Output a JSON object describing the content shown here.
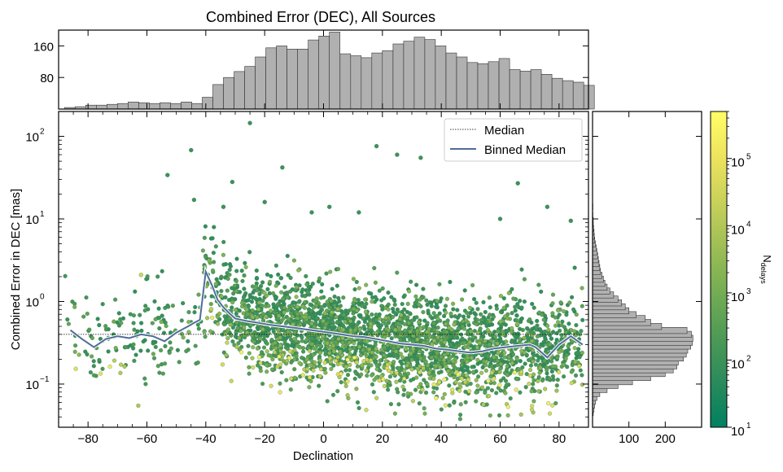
{
  "chart_data": {
    "type": "scatter",
    "title": "Combined Error (DEC), All Sources",
    "xlabel": "Declination",
    "ylabel": "Combined Error in DEC [mas]",
    "xlim": [
      -90,
      90
    ],
    "ylim": [
      0.03,
      200
    ],
    "yscale": "log",
    "x_ticks": [
      -80,
      -60,
      -40,
      -20,
      0,
      20,
      40,
      60,
      80
    ],
    "x_tick_labels": [
      "−80",
      "−60",
      "−40",
      "−20",
      "0",
      "20",
      "40",
      "60",
      "80"
    ],
    "y_ticks": [
      0.1,
      1,
      10,
      100
    ],
    "y_tick_labels": [
      "10",
      "10",
      "10",
      "10"
    ],
    "y_tick_exponents": [
      "−1",
      "0",
      "1",
      "2"
    ],
    "legend": {
      "placement": "top-right",
      "entries": [
        {
          "label": "Median",
          "style": "dotted",
          "color": "#000000"
        },
        {
          "label": "Binned Median",
          "style": "solid",
          "color": "#4f6d99"
        }
      ]
    },
    "median_value": 0.4,
    "binned_median": {
      "x": [
        -86,
        -82,
        -78,
        -74,
        -70,
        -66,
        -62,
        -58,
        -54,
        -50,
        -46,
        -44,
        -42,
        -40,
        -38,
        -36,
        -34,
        -32,
        -30,
        -26,
        -22,
        -18,
        -14,
        -10,
        -6,
        -2,
        2,
        6,
        10,
        14,
        18,
        22,
        26,
        30,
        34,
        38,
        42,
        46,
        50,
        54,
        58,
        62,
        66,
        70,
        72,
        76,
        80,
        84,
        88
      ],
      "y": [
        0.45,
        0.35,
        0.28,
        0.35,
        0.38,
        0.36,
        0.4,
        0.38,
        0.33,
        0.42,
        0.5,
        0.55,
        0.6,
        2.3,
        1.6,
        1.05,
        0.85,
        0.72,
        0.62,
        0.58,
        0.55,
        0.52,
        0.5,
        0.48,
        0.46,
        0.44,
        0.42,
        0.4,
        0.38,
        0.37,
        0.35,
        0.33,
        0.31,
        0.3,
        0.29,
        0.27,
        0.26,
        0.25,
        0.24,
        0.25,
        0.27,
        0.28,
        0.29,
        0.3,
        0.28,
        0.21,
        0.3,
        0.38,
        0.3
      ]
    },
    "colorbar": {
      "label": "N",
      "label_sub": "delays",
      "scale": "log",
      "range": [
        10,
        500000
      ],
      "ticks": [
        10,
        100,
        1000,
        10000,
        100000
      ],
      "tick_labels": [
        "10",
        "10",
        "10",
        "10",
        "10"
      ],
      "tick_exponents": [
        "1",
        "2",
        "3",
        "4",
        "5"
      ],
      "colormap": [
        "#008060",
        "#2a8b5b",
        "#4e9a56",
        "#74ad54",
        "#9ebe55",
        "#c8d15a",
        "#eee35e",
        "#ffff66"
      ]
    },
    "top_histogram": {
      "y_ticks": [
        80,
        160
      ],
      "y_tick_labels": [
        "80",
        "160"
      ],
      "ylim": [
        0,
        200
      ],
      "bin_edges_start": -88,
      "bin_width": 3.6,
      "counts": [
        4,
        6,
        10,
        10,
        12,
        14,
        18,
        16,
        14,
        16,
        14,
        18,
        14,
        30,
        62,
        80,
        95,
        108,
        132,
        155,
        160,
        152,
        152,
        175,
        185,
        195,
        140,
        135,
        130,
        142,
        148,
        165,
        172,
        182,
        176,
        160,
        142,
        132,
        118,
        115,
        120,
        128,
        100,
        96,
        100,
        88,
        78,
        72,
        68,
        60
      ]
    },
    "right_histogram": {
      "x_ticks": [
        100,
        200
      ],
      "x_tick_labels": [
        "100",
        "200"
      ],
      "xlim": [
        0,
        300
      ],
      "counts_by_bin": [
        {
          "y": 0.045,
          "c": 2
        },
        {
          "y": 0.05,
          "c": 4
        },
        {
          "y": 0.056,
          "c": 6
        },
        {
          "y": 0.062,
          "c": 8
        },
        {
          "y": 0.069,
          "c": 12
        },
        {
          "y": 0.077,
          "c": 20
        },
        {
          "y": 0.086,
          "c": 40
        },
        {
          "y": 0.096,
          "c": 70
        },
        {
          "y": 0.107,
          "c": 110
        },
        {
          "y": 0.12,
          "c": 160
        },
        {
          "y": 0.134,
          "c": 200
        },
        {
          "y": 0.149,
          "c": 222
        },
        {
          "y": 0.166,
          "c": 232
        },
        {
          "y": 0.185,
          "c": 236
        },
        {
          "y": 0.207,
          "c": 250
        },
        {
          "y": 0.231,
          "c": 258
        },
        {
          "y": 0.258,
          "c": 262
        },
        {
          "y": 0.288,
          "c": 270
        },
        {
          "y": 0.321,
          "c": 275
        },
        {
          "y": 0.358,
          "c": 276
        },
        {
          "y": 0.4,
          "c": 272
        },
        {
          "y": 0.446,
          "c": 260
        },
        {
          "y": 0.498,
          "c": 190
        },
        {
          "y": 0.556,
          "c": 160
        },
        {
          "y": 0.62,
          "c": 145
        },
        {
          "y": 0.692,
          "c": 120
        },
        {
          "y": 0.772,
          "c": 100
        },
        {
          "y": 0.862,
          "c": 90
        },
        {
          "y": 0.962,
          "c": 80
        },
        {
          "y": 1.07,
          "c": 70
        },
        {
          "y": 1.2,
          "c": 58
        },
        {
          "y": 1.34,
          "c": 48
        },
        {
          "y": 1.49,
          "c": 40
        },
        {
          "y": 1.66,
          "c": 34
        },
        {
          "y": 1.86,
          "c": 30
        },
        {
          "y": 2.07,
          "c": 26
        },
        {
          "y": 2.31,
          "c": 22
        },
        {
          "y": 2.58,
          "c": 20
        },
        {
          "y": 2.88,
          "c": 18
        },
        {
          "y": 3.21,
          "c": 16
        },
        {
          "y": 3.58,
          "c": 14
        },
        {
          "y": 4.0,
          "c": 12
        },
        {
          "y": 4.46,
          "c": 10
        },
        {
          "y": 4.98,
          "c": 8
        },
        {
          "y": 5.56,
          "c": 6
        },
        {
          "y": 6.2,
          "c": 5
        },
        {
          "y": 6.92,
          "c": 4
        },
        {
          "y": 7.72,
          "c": 3
        },
        {
          "y": 8.62,
          "c": 2
        },
        {
          "y": 9.6,
          "c": 2
        },
        {
          "y": 11,
          "c": 1
        },
        {
          "y": 14,
          "c": 1
        }
      ]
    },
    "outliers": [
      {
        "x": -25,
        "y": 145
      },
      {
        "x": -45,
        "y": 68
      },
      {
        "x": 18,
        "y": 76
      },
      {
        "x": 25,
        "y": 60
      },
      {
        "x": 33,
        "y": 55
      },
      {
        "x": -53,
        "y": 34
      },
      {
        "x": -14,
        "y": 42
      },
      {
        "x": 66,
        "y": 27
      },
      {
        "x": -31,
        "y": 28
      },
      {
        "x": -44,
        "y": 17
      },
      {
        "x": -20,
        "y": 16
      },
      {
        "x": 2,
        "y": 14
      },
      {
        "x": 76,
        "y": 14
      },
      {
        "x": -4,
        "y": 12
      },
      {
        "x": 12,
        "y": 12
      },
      {
        "x": -62,
        "y": 2.1
      },
      {
        "x": 60,
        "y": 10
      },
      {
        "x": 84,
        "y": 9.5
      },
      {
        "x": -34,
        "y": 14
      }
    ]
  }
}
